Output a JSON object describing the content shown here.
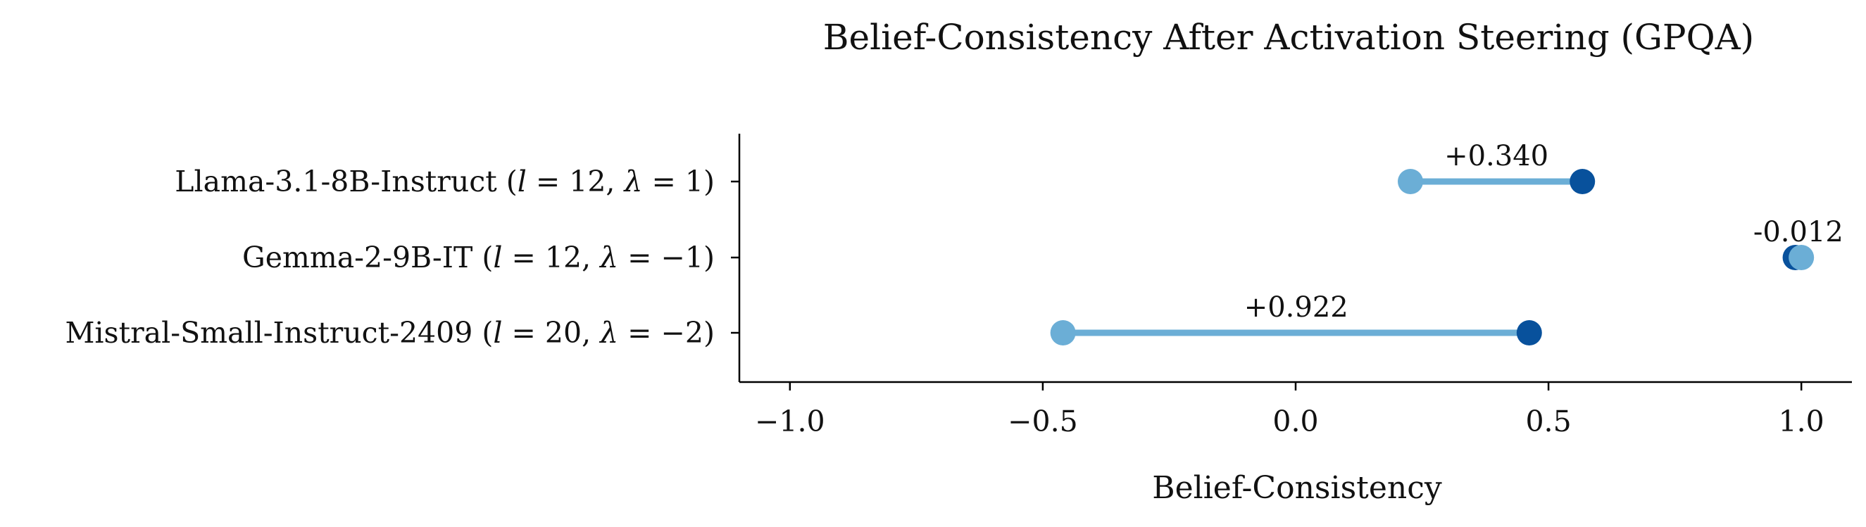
{
  "chart_data": {
    "type": "dumbbell",
    "title": "Belief-Consistency After Activation Steering (GPQA)",
    "xlabel": "Belief-Consistency",
    "ylabel": "",
    "xlim": [
      -1.1,
      1.1
    ],
    "x_ticks": [
      -1.0,
      -0.5,
      0.0,
      0.5,
      1.0
    ],
    "x_tick_labels": [
      "−1.0",
      "−0.5",
      "0.0",
      "0.5",
      "1.0"
    ],
    "grid": false,
    "legend": "none",
    "rows": [
      {
        "label": "Llama-3.1-8B-Instruct (",
        "layer": "12",
        "lambda": "1",
        "label_tail": ")",
        "before": 0.227,
        "after": 0.567,
        "delta_label": "+0.340"
      },
      {
        "label": "Gemma-2-9B-IT (",
        "layer": "12",
        "lambda": "−1",
        "label_tail": ")",
        "before": 1.0,
        "after": 0.988,
        "delta_label": "-0.012"
      },
      {
        "label": "Mistral-Small-Instruct-2409 (",
        "layer": "20",
        "lambda": "−2",
        "label_tail": ")",
        "before": -0.46,
        "after": 0.462,
        "delta_label": "+0.922"
      }
    ],
    "colors": {
      "before": "#6baed6",
      "after": "#08519c",
      "connector": "#6baed6",
      "axis": "#000000"
    }
  }
}
